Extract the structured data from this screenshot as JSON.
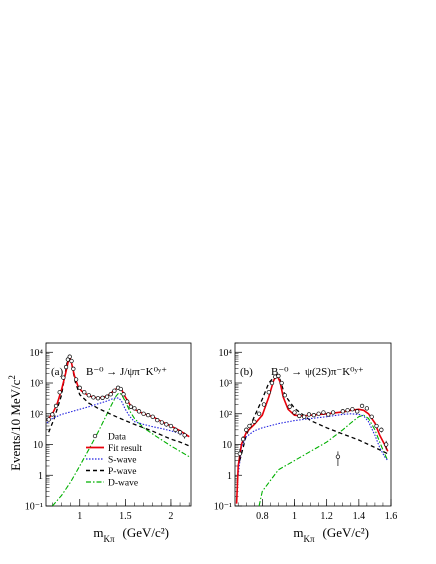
{
  "chart_data": {
    "type": "line",
    "ylabel": "Events/10 MeV/c²",
    "colors": {
      "data": "#000000",
      "fit": "#e8000b",
      "swave": "#2020e0",
      "pwave": "#000000",
      "dwave": "#00b000"
    },
    "legend": {
      "placement": "lower-left of panel (a)",
      "entries": [
        {
          "key": "data",
          "label": "Data"
        },
        {
          "key": "fit",
          "label": "Fit result"
        },
        {
          "key": "swave",
          "label": "S-wave"
        },
        {
          "key": "pwave",
          "label": "P-wave"
        },
        {
          "key": "dwave",
          "label": "D-wave"
        }
      ]
    },
    "panels": [
      {
        "label": "(a)",
        "process": "B⁻⁰ → J/ψπ⁻K⁰ʸ⁺",
        "xlabel": "m",
        "xlabel_sub": "Kπ",
        "xunit": "(GeV/c²)",
        "xlim": [
          0.63,
          2.22
        ],
        "ylim": [
          0.1,
          20000
        ],
        "ylog": true,
        "xticks": [
          1,
          1.5,
          2
        ],
        "xtick_labels": [
          "1",
          "1.5",
          "2"
        ],
        "yticks": [
          0.1,
          1,
          10,
          100,
          1000,
          10000
        ],
        "ytick_labels": [
          "10⁻¹",
          "1",
          "10",
          "10²",
          "10³",
          "10⁴"
        ],
        "series": {
          "fit": {
            "x": [
              0.64,
              0.7,
              0.75,
              0.8,
              0.84,
              0.87,
              0.89,
              0.91,
              0.94,
              0.98,
              1.02,
              1.1,
              1.2,
              1.3,
              1.36,
              1.4,
              1.43,
              1.46,
              1.5,
              1.55,
              1.6,
              1.7,
              1.8,
              1.9,
              2.0,
              2.1,
              2.2
            ],
            "y": [
              60,
              100,
              200,
              600,
              1800,
              4500,
              7000,
              4500,
              1800,
              800,
              550,
              380,
              320,
              370,
              520,
              650,
              700,
              600,
              350,
              200,
              140,
              100,
              80,
              55,
              40,
              28,
              18
            ]
          },
          "swave": {
            "x": [
              0.64,
              0.7,
              0.8,
              0.9,
              1.0,
              1.1,
              1.2,
              1.3,
              1.35,
              1.4,
              1.43,
              1.46,
              1.5,
              1.55,
              1.6,
              1.7,
              1.8,
              1.9,
              2.0,
              2.1,
              2.2
            ],
            "y": [
              50,
              70,
              95,
              115,
              140,
              170,
              210,
              260,
              300,
              330,
              320,
              250,
              140,
              80,
              55,
              45,
              38,
              33,
              28,
              23,
              18
            ]
          },
          "pwave": {
            "x": [
              0.66,
              0.72,
              0.8,
              0.86,
              0.9,
              0.95,
              1.0,
              1.1,
              1.2,
              1.3,
              1.4,
              1.5,
              1.6,
              1.7,
              1.8,
              1.9,
              2.0,
              2.1,
              2.2
            ],
            "y": [
              25,
              70,
              400,
              4500,
              6000,
              1100,
              420,
              220,
              150,
              110,
              80,
              60,
              45,
              35,
              27,
              20,
              15,
              12,
              9
            ]
          },
          "dwave": {
            "x": [
              0.7,
              0.8,
              0.9,
              1.0,
              1.1,
              1.2,
              1.3,
              1.35,
              1.4,
              1.43,
              1.46,
              1.5,
              1.55,
              1.6,
              1.7,
              1.8,
              1.9,
              2.0,
              2.1,
              2.2
            ],
            "y": [
              0.1,
              0.22,
              0.6,
              2,
              7,
              25,
              100,
              200,
              380,
              480,
              420,
              250,
              120,
              70,
              35,
              22,
              14,
              9,
              6,
              4
            ]
          },
          "data": {
            "x": [
              0.66,
              0.7,
              0.74,
              0.78,
              0.82,
              0.85,
              0.87,
              0.89,
              0.91,
              0.93,
              0.96,
              1.0,
              1.05,
              1.1,
              1.15,
              1.2,
              1.25,
              1.3,
              1.34,
              1.38,
              1.42,
              1.45,
              1.48,
              1.52,
              1.56,
              1.6,
              1.65,
              1.7,
              1.75,
              1.8,
              1.85,
              1.9,
              1.95,
              2.0,
              2.05,
              2.1,
              2.15
            ],
            "y": [
              65,
              95,
              180,
              500,
              1500,
              3300,
              5800,
              7200,
              5200,
              2900,
              1300,
              700,
              500,
              400,
              340,
              320,
              330,
              360,
              430,
              560,
              700,
              640,
              430,
              250,
              170,
              150,
              120,
              100,
              90,
              80,
              62,
              52,
              45,
              40,
              30,
              25,
              20
            ]
          }
        }
      },
      {
        "label": "(b)",
        "process": "B⁻⁰ → ψ(2S)π⁻K⁰ʸ⁺",
        "xlabel": "m",
        "xlabel_sub": "Kπ",
        "xunit": "(GeV/c²)",
        "xlim": [
          0.63,
          1.6
        ],
        "ylim": [
          0.1,
          20000
        ],
        "ylog": true,
        "xticks": [
          0.8,
          1.0,
          1.2,
          1.4,
          1.6
        ],
        "xtick_labels": [
          "0.8",
          "1",
          "1.2",
          "1.4",
          "1.6"
        ],
        "yticks": [
          0.1,
          1,
          10,
          100,
          1000,
          10000
        ],
        "ytick_labels": [
          "10⁻¹",
          "1",
          "10",
          "10²",
          "10³",
          "10⁴"
        ],
        "series": {
          "fit": {
            "x": [
              0.64,
              0.65,
              0.67,
              0.7,
              0.75,
              0.8,
              0.84,
              0.87,
              0.89,
              0.91,
              0.93,
              0.96,
              1.0,
              1.05,
              1.1,
              1.2,
              1.3,
              1.35,
              1.4,
              1.43,
              1.46,
              1.5,
              1.53,
              1.56,
              1.58
            ],
            "y": [
              0.12,
              2,
              10,
              25,
              45,
              90,
              350,
              1200,
              1800,
              1100,
              350,
              140,
              90,
              85,
              90,
              100,
              115,
              130,
              140,
              130,
              100,
              50,
              20,
              10,
              6
            ]
          },
          "swave": {
            "x": [
              0.65,
              0.67,
              0.7,
              0.75,
              0.8,
              0.9,
              1.0,
              1.1,
              1.2,
              1.3,
              1.35,
              1.4,
              1.43,
              1.46,
              1.5,
              1.53,
              1.56,
              1.58
            ],
            "y": [
              1,
              8,
              18,
              28,
              35,
              48,
              60,
              70,
              80,
              95,
              100,
              95,
              85,
              55,
              20,
              8,
              4,
              3
            ]
          },
          "pwave": {
            "x": [
              0.66,
              0.7,
              0.75,
              0.8,
              0.84,
              0.87,
              0.89,
              0.91,
              0.94,
              1.0,
              1.1,
              1.2,
              1.3,
              1.4,
              1.5,
              1.58
            ],
            "y": [
              3,
              20,
              80,
              300,
              1000,
              1500,
              1700,
              1300,
              400,
              150,
              60,
              35,
              22,
              14,
              8,
              5
            ]
          },
          "dwave": {
            "x": [
              0.78,
              0.8,
              0.9,
              1.0,
              1.1,
              1.2,
              1.3,
              1.35,
              1.4,
              1.43,
              1.46,
              1.5,
              1.53,
              1.56,
              1.58
            ],
            "y": [
              0.1,
              0.3,
              1.5,
              3,
              6,
              12,
              30,
              50,
              80,
              90,
              70,
              30,
              12,
              5,
              3
            ]
          },
          "data": {
            "x": [
              0.66,
              0.68,
              0.7,
              0.72,
              0.75,
              0.78,
              0.81,
              0.84,
              0.86,
              0.88,
              0.9,
              0.92,
              0.94,
              0.97,
              1.0,
              1.03,
              1.06,
              1.09,
              1.12,
              1.15,
              1.18,
              1.21,
              1.24,
              1.27,
              1.3,
              1.33,
              1.36,
              1.39,
              1.42,
              1.45,
              1.48,
              1.51,
              1.54,
              1.57
            ],
            "y": [
              5,
              15,
              30,
              40,
              55,
              100,
              200,
              500,
              1000,
              1600,
              1700,
              1000,
              400,
              170,
              110,
              85,
              80,
              95,
              90,
              100,
              110,
              95,
              110,
              4,
              120,
              130,
              140,
              120,
              180,
              150,
              80,
              40,
              30,
              10
            ]
          }
        }
      }
    ]
  }
}
